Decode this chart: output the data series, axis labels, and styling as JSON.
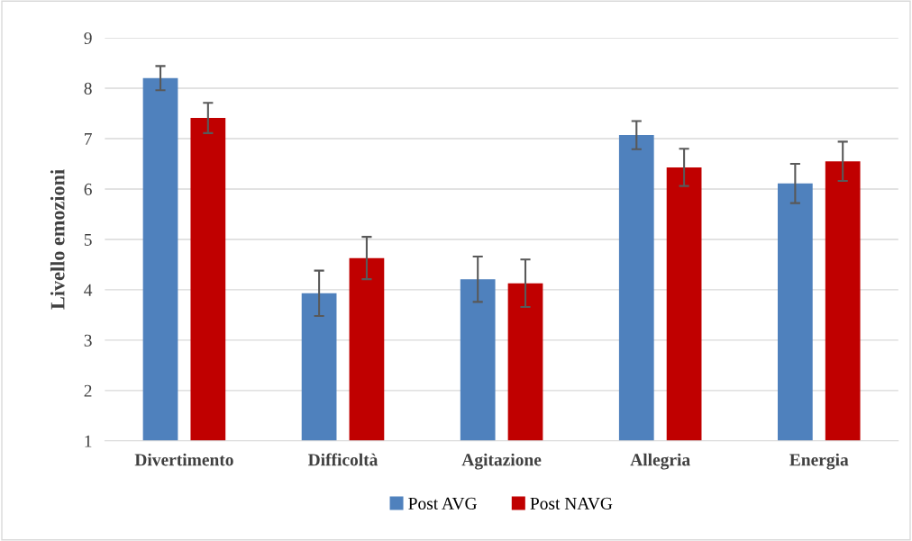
{
  "chart_data": {
    "type": "bar",
    "ylabel": "Livello emozioni",
    "categories": [
      "Divertimento",
      "Difficoltà",
      "Agitazione",
      "Allegria",
      "Energia"
    ],
    "series": [
      {
        "name": "Post AVG",
        "color": "#4f81bd",
        "values": [
          8.2,
          3.93,
          4.21,
          7.07,
          6.11
        ],
        "errors": [
          0.24,
          0.45,
          0.45,
          0.28,
          0.39
        ]
      },
      {
        "name": "Post NAVG",
        "color": "#c00000",
        "values": [
          7.41,
          4.63,
          4.13,
          6.43,
          6.55
        ],
        "errors": [
          0.3,
          0.42,
          0.47,
          0.37,
          0.39
        ]
      }
    ],
    "ylim": [
      1,
      9
    ],
    "yticks": [
      1,
      2,
      3,
      4,
      5,
      6,
      7,
      8,
      9
    ],
    "grid": "y",
    "legend": "bottom"
  }
}
